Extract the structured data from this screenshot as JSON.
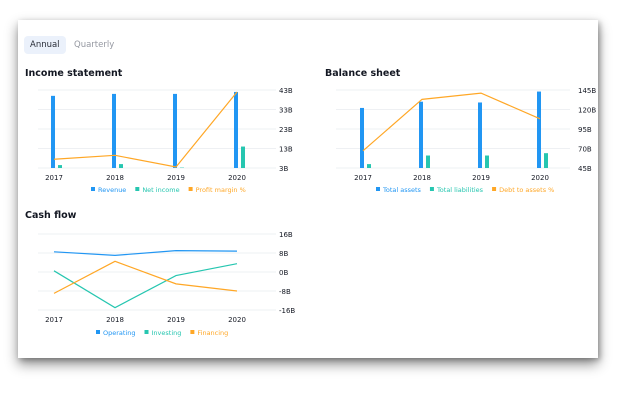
{
  "tabs": [
    {
      "label": "Annual",
      "active": true
    },
    {
      "label": "Quarterly",
      "active": false
    }
  ],
  "colors": {
    "blue": "#2196f3",
    "teal": "#26c6b0",
    "orange": "#ffa726",
    "grid": "#eef0f3",
    "text": "#131722"
  },
  "chart_data": [
    {
      "type": "bar",
      "title": "Income statement",
      "categories": [
        "2017",
        "2018",
        "2019",
        "2020"
      ],
      "axis_labels": [
        "43B",
        "33B",
        "23B",
        "13B",
        "3B"
      ],
      "ylim": [
        3,
        43
      ],
      "series": [
        {
          "name": "Revenue",
          "kind": "bar",
          "color": "#2196f3",
          "values": [
            40,
            41,
            41,
            42
          ]
        },
        {
          "name": "Net income",
          "kind": "bar",
          "color": "#26c6b0",
          "values": [
            4.5,
            5,
            3.2,
            14
          ]
        },
        {
          "name": "Profit margin %",
          "kind": "line",
          "color": "#ffa726",
          "values": [
            7.5,
            9.5,
            3.5,
            42
          ]
        }
      ]
    },
    {
      "type": "bar",
      "title": "Balance sheet",
      "categories": [
        "2017",
        "2018",
        "2019",
        "2020"
      ],
      "axis_labels": [
        "145B",
        "120B",
        "95B",
        "70B",
        "45B"
      ],
      "ylim": [
        45,
        145
      ],
      "series": [
        {
          "name": "Total assets",
          "kind": "bar",
          "color": "#2196f3",
          "values": [
            122,
            130,
            129,
            143
          ]
        },
        {
          "name": "Total liabilities",
          "kind": "bar",
          "color": "#26c6b0",
          "values": [
            50,
            61,
            61,
            64
          ]
        },
        {
          "name": "Debt to assets %",
          "kind": "line",
          "color": "#ffa726",
          "values": [
            67,
            133,
            141,
            108
          ]
        }
      ]
    },
    {
      "type": "line",
      "title": "Cash flow",
      "categories": [
        "2017",
        "2018",
        "2019",
        "2020"
      ],
      "axis_labels": [
        "16B",
        "8B",
        "0B",
        "-8B",
        "-16B"
      ],
      "ylim": [
        -16,
        16
      ],
      "series": [
        {
          "name": "Operating",
          "kind": "line",
          "color": "#2196f3",
          "values": [
            8.5,
            7,
            9,
            8.8
          ]
        },
        {
          "name": "Investing",
          "kind": "line",
          "color": "#26c6b0",
          "values": [
            0.5,
            -15,
            -1.5,
            3.5
          ]
        },
        {
          "name": "Financing",
          "kind": "line",
          "color": "#ffa726",
          "values": [
            -9,
            4.5,
            -5,
            -8
          ]
        }
      ]
    }
  ]
}
